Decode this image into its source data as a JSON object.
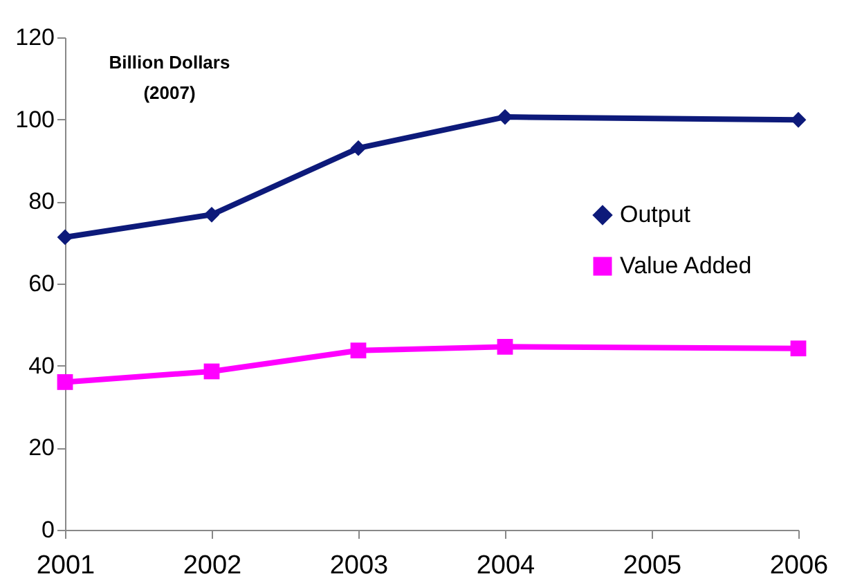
{
  "chart_data": {
    "type": "line",
    "ylabel": "Billion Dollars (2007)",
    "xlim": [
      2001,
      2006
    ],
    "xticks": [
      2001,
      2002,
      2003,
      2004,
      2005,
      2006
    ],
    "ylim": [
      0,
      120
    ],
    "yticks": [
      0,
      20,
      40,
      60,
      80,
      100,
      120
    ],
    "grid": false,
    "legend": "right",
    "line_style": "solid",
    "series": [
      {
        "name": "Output",
        "color": "#0d1a7a",
        "marker": "diamond",
        "x": [
          2001,
          2002,
          2003,
          2004,
          2006
        ],
        "values": [
          71.3,
          76.8,
          93,
          100.6,
          99.9
        ]
      },
      {
        "name": "Value Added",
        "color": "#ff00ff",
        "marker": "square",
        "x": [
          2001,
          2002,
          2003,
          2004,
          2006
        ],
        "values": [
          36,
          38.6,
          43.7,
          44.6,
          44.2
        ]
      }
    ]
  }
}
